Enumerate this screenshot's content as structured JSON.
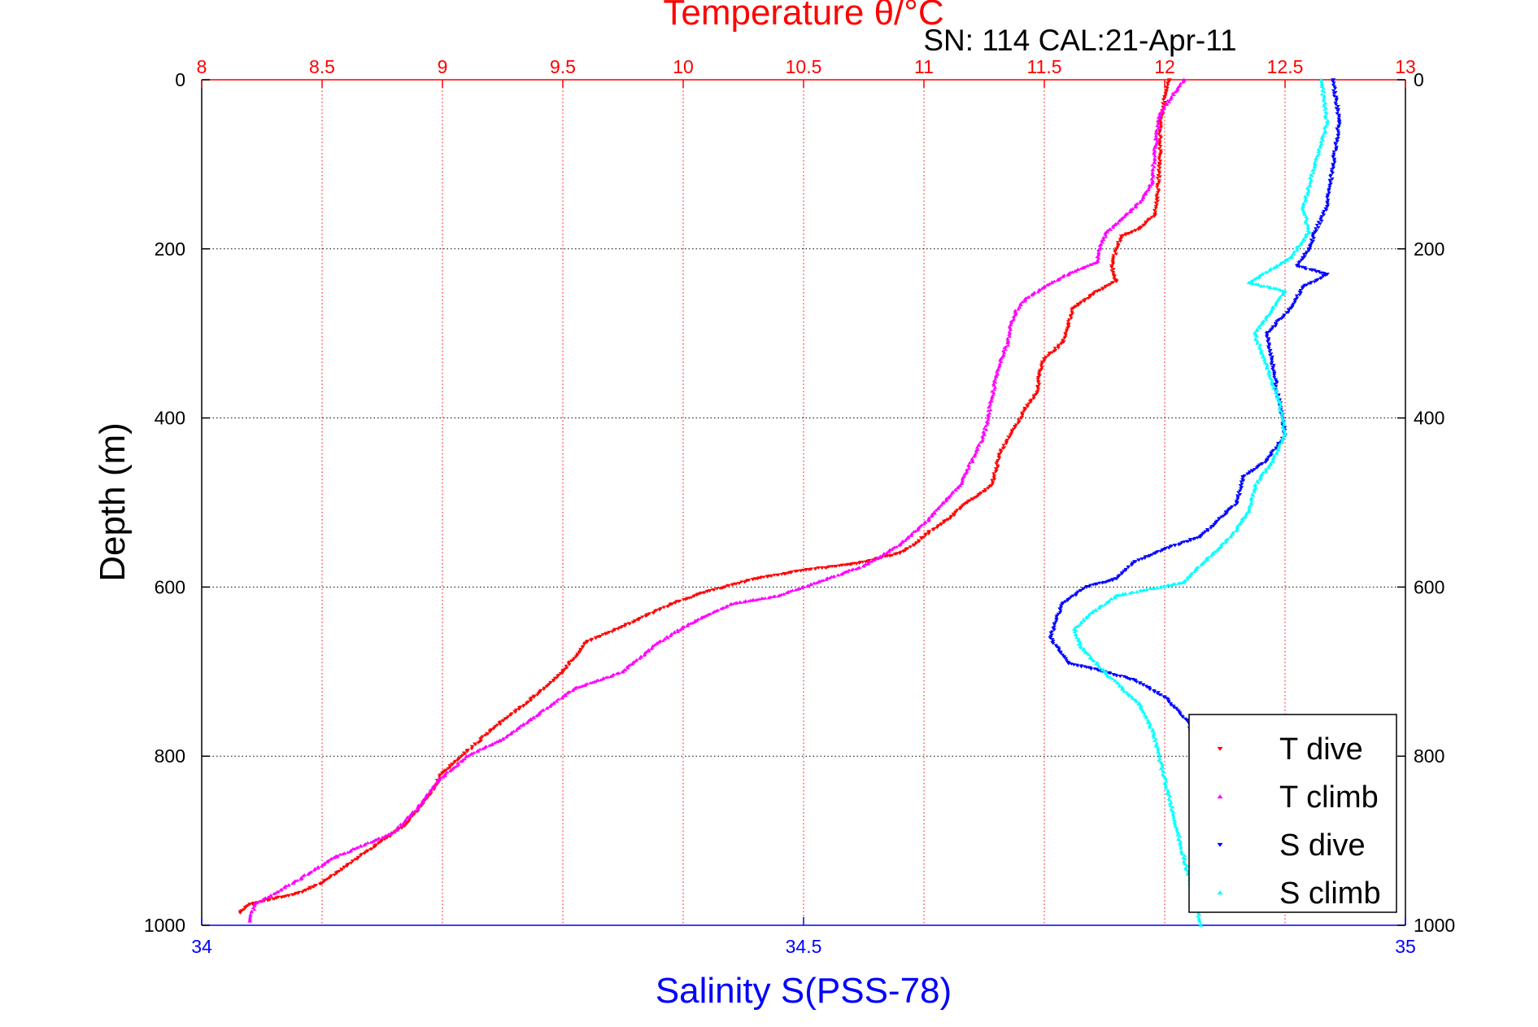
{
  "chart_data": {
    "type": "scatter",
    "title": "Temperature θ/°C",
    "subtitle": "SN: 114  CAL:21-Apr-11",
    "ylabel": "Depth (m)",
    "xlabel": "Salinity S(PSS-78)",
    "y_reversed": true,
    "grid": true,
    "legend_position": "bottom-right",
    "top_axis": {
      "label": "Temperature θ/°C",
      "range": [
        8,
        13
      ],
      "ticks": [
        "8",
        "8.5",
        "9",
        "9.5",
        "10",
        "10.5",
        "11",
        "11.5",
        "12",
        "12.5",
        "13"
      ],
      "tick_values": [
        8,
        8.5,
        9,
        9.5,
        10,
        10.5,
        11,
        11.5,
        12,
        12.5,
        13
      ],
      "color": "#ff0000"
    },
    "bottom_axis": {
      "label": "Salinity S(PSS-78)",
      "range": [
        34,
        35
      ],
      "ticks": [
        "34",
        "34.5",
        "35"
      ],
      "tick_values": [
        34,
        34.5,
        35
      ],
      "color": "#0000ff"
    },
    "y_axis": {
      "label": "Depth (m)",
      "range": [
        0,
        1000
      ],
      "ticks": [
        "0",
        "200",
        "400",
        "600",
        "800",
        "1000"
      ],
      "tick_values": [
        0,
        200,
        400,
        600,
        800,
        1000
      ]
    },
    "series": [
      {
        "name": "T dive",
        "axis": "temperature",
        "color": "#ff0000",
        "marker": "triangle-down",
        "x": [
          12.02,
          12.0,
          11.99,
          11.98,
          11.98,
          11.97,
          11.96,
          11.9,
          11.82,
          11.8,
          11.78,
          11.79,
          11.8,
          11.72,
          11.62,
          11.6,
          11.58,
          11.5,
          11.48,
          11.47,
          11.42,
          11.36,
          11.32,
          11.3,
          11.28,
          11.18,
          11.1,
          11.02,
          10.96,
          10.9,
          10.72,
          10.5,
          10.3,
          10.1,
          9.95,
          9.8,
          9.6,
          9.5,
          9.38,
          9.2,
          9.0,
          8.95,
          8.85,
          8.65,
          8.5,
          8.4,
          8.2,
          8.16
        ],
        "y": [
          0,
          20,
          40,
          60,
          100,
          140,
          160,
          175,
          185,
          200,
          220,
          232,
          238,
          250,
          270,
          290,
          310,
          330,
          350,
          370,
          390,
          420,
          440,
          460,
          480,
          500,
          520,
          535,
          550,
          560,
          572,
          580,
          590,
          605,
          620,
          640,
          665,
          700,
          730,
          770,
          820,
          845,
          880,
          920,
          950,
          962,
          975,
          985
        ]
      },
      {
        "name": "T climb",
        "axis": "temperature",
        "color": "#ff00ff",
        "marker": "triangle-up",
        "x": [
          12.08,
          11.98,
          11.96,
          11.95,
          11.92,
          11.88,
          11.82,
          11.76,
          11.73,
          11.72,
          11.6,
          11.5,
          11.42,
          11.38,
          11.36,
          11.35,
          11.32,
          11.3,
          11.28,
          11.25,
          11.2,
          11.15,
          11.08,
          11.02,
          10.9,
          10.75,
          10.4,
          10.2,
          10.05,
          9.9,
          9.75,
          9.55,
          9.4,
          9.25,
          9.1,
          8.98,
          8.9,
          8.8,
          8.55,
          8.38,
          8.22,
          8.2
        ],
        "y": [
          0,
          40,
          80,
          120,
          135,
          150,
          165,
          180,
          200,
          215,
          230,
          245,
          260,
          275,
          290,
          310,
          330,
          350,
          380,
          420,
          450,
          480,
          500,
          520,
          550,
          575,
          610,
          620,
          640,
          665,
          700,
          720,
          750,
          780,
          800,
          830,
          860,
          890,
          920,
          950,
          975,
          995
        ]
      },
      {
        "name": "S dive",
        "axis": "salinity",
        "color": "#0000ff",
        "marker": "triangle-down",
        "x": [
          34.94,
          34.945,
          34.94,
          34.935,
          34.925,
          34.92,
          34.91,
          34.935,
          34.915,
          34.905,
          34.885,
          34.89,
          34.895,
          34.9,
          34.885,
          34.865,
          34.86,
          34.83,
          34.8,
          34.775,
          34.76,
          34.735,
          34.715,
          34.705,
          34.72,
          34.75,
          34.775,
          34.8,
          34.82,
          34.825
        ],
        "y": [
          0,
          50,
          100,
          150,
          180,
          200,
          220,
          230,
          245,
          270,
          300,
          340,
          380,
          420,
          450,
          470,
          500,
          540,
          555,
          570,
          590,
          600,
          620,
          660,
          690,
          700,
          710,
          730,
          760,
          790
        ]
      },
      {
        "name": "S climb",
        "axis": "salinity",
        "color": "#00ffff",
        "marker": "triangle-up",
        "x": [
          34.93,
          34.935,
          34.925,
          34.915,
          34.92,
          34.905,
          34.87,
          34.9,
          34.89,
          34.875,
          34.885,
          34.895,
          34.9,
          34.89,
          34.875,
          34.87,
          34.855,
          34.84,
          34.815,
          34.76,
          34.74,
          34.725,
          34.73,
          34.75,
          34.765,
          34.78,
          34.79,
          34.83
        ],
        "y": [
          0,
          50,
          100,
          150,
          180,
          210,
          240,
          250,
          270,
          300,
          340,
          380,
          420,
          450,
          480,
          510,
          540,
          560,
          595,
          610,
          630,
          650,
          670,
          700,
          720,
          740,
          770,
          1000
        ]
      }
    ],
    "legend": [
      "T dive",
      "T climb",
      "S dive",
      "S climb"
    ]
  }
}
